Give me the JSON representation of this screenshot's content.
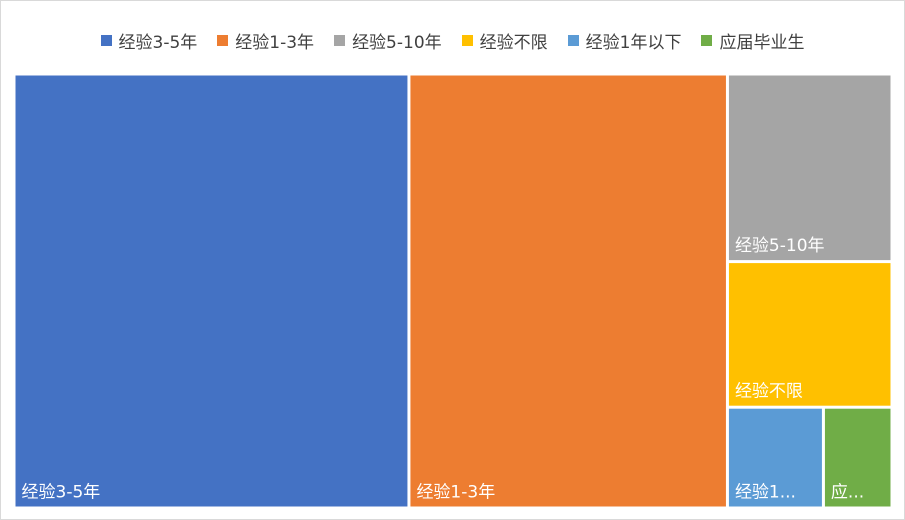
{
  "chart_data": {
    "type": "treemap",
    "title": "",
    "legend_position": "top",
    "categories": [
      "经验3-5年",
      "经验1-3年",
      "经验5-10年",
      "经验不限",
      "经验1年以下",
      "应届毕业生"
    ],
    "values": [
      372,
      300,
      67,
      52,
      21,
      15
    ],
    "colors": [
      "#4472C4",
      "#ED7D31",
      "#A5A5A5",
      "#FFC000",
      "#5B9BD5",
      "#70AD47"
    ],
    "tile_labels": [
      "经验3-5年",
      "经验1-3年",
      "经验5-10年",
      "经验不限",
      "经验1...",
      "应..."
    ]
  }
}
